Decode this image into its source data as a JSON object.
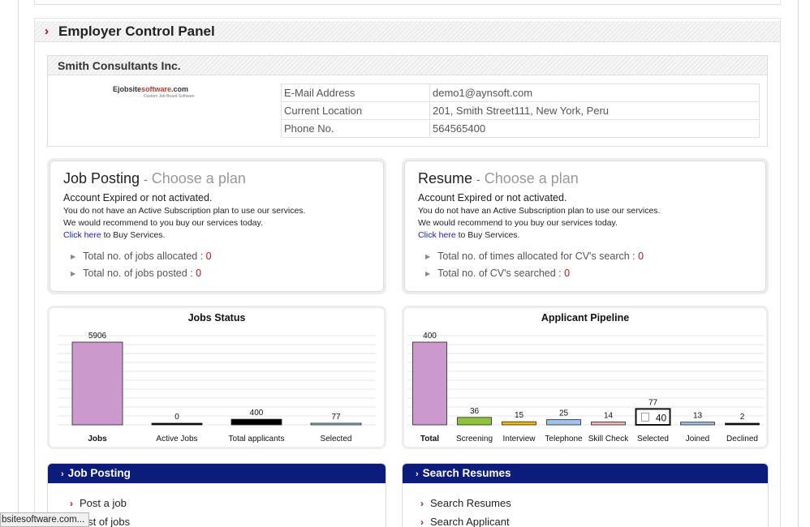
{
  "panel": {
    "title": "Employer Control Panel"
  },
  "company": {
    "name": "Smith Consultants Inc.",
    "logo": {
      "brand_black": "Ejobsite",
      "brand_red": "software",
      "brand_tld": ".com",
      "tagline": "Custom Job Board Software"
    },
    "fields": [
      {
        "label": "E-Mail Address",
        "value": "demo1@aynsoft.com"
      },
      {
        "label": "Current Location",
        "value": "201, Smith Street111, New York, Peru"
      },
      {
        "label": "Phone No.",
        "value": "564565400"
      }
    ]
  },
  "job_posting": {
    "title": "Job Posting",
    "separator": "-",
    "plan": "Choose a plan",
    "status": "Account Expired or not activated.",
    "line1": "You do not have an Active Subscription plan to use our services.",
    "line2": "We would recommend to you buy our services today.",
    "link": "Click here",
    "link_suffix": " to Buy Services.",
    "stats": [
      {
        "label": "Total no. of jobs allocated : ",
        "value": "0"
      },
      {
        "label": "Total no. of jobs posted : ",
        "value": "0"
      }
    ]
  },
  "resume": {
    "title": "Resume",
    "separator": "-",
    "plan": "Choose a plan",
    "status": "Account Expired or not activated.",
    "line1": "You do not have an Active Subscription plan to use our services.",
    "line2": "We would recommend to you buy our services today.",
    "link": "Click here",
    "link_suffix": " to Buy Services.",
    "stats": [
      {
        "label": "Total no. of times allocated for CV's search : ",
        "value": "0"
      },
      {
        "label": "Total no. of CV's searched : ",
        "value": "0"
      }
    ]
  },
  "chart_data": [
    {
      "type": "bar",
      "title": "Jobs Status",
      "categories": [
        "Jobs",
        "Active Jobs",
        "Total applicants",
        "Selected"
      ],
      "values": [
        5906,
        0,
        400,
        77
      ],
      "colors": [
        "#cc99cc",
        "#000000",
        "#000000",
        "#99c2e8"
      ],
      "ylim": [
        0,
        5906
      ],
      "grid": true
    },
    {
      "type": "bar",
      "title": "Applicant Pipeline",
      "categories": [
        "Total",
        "Screening",
        "Interview",
        "Telephone",
        "Skill Check",
        "Selected",
        "Joined",
        "Declined"
      ],
      "values": [
        400,
        36,
        15,
        25,
        14,
        77,
        13,
        2
      ],
      "colors": [
        "#cc99cc",
        "#8fc43a",
        "#f5b800",
        "#9fc3ea",
        "#f4b8b8",
        "#ffffff",
        "#9fc3ea",
        "#000000"
      ],
      "ylim": [
        0,
        400
      ],
      "grid": true,
      "annotation": {
        "text": "40",
        "icon": "page-icon"
      }
    }
  ],
  "nav_job": {
    "title": "Job Posting",
    "items": [
      "Post a job",
      "List of jobs"
    ]
  },
  "nav_resume": {
    "title": "Search Resumes",
    "items": [
      "Search Resumes",
      "Search Applicant"
    ]
  },
  "status_bar": {
    "text": "bsitesoftware.com..."
  }
}
